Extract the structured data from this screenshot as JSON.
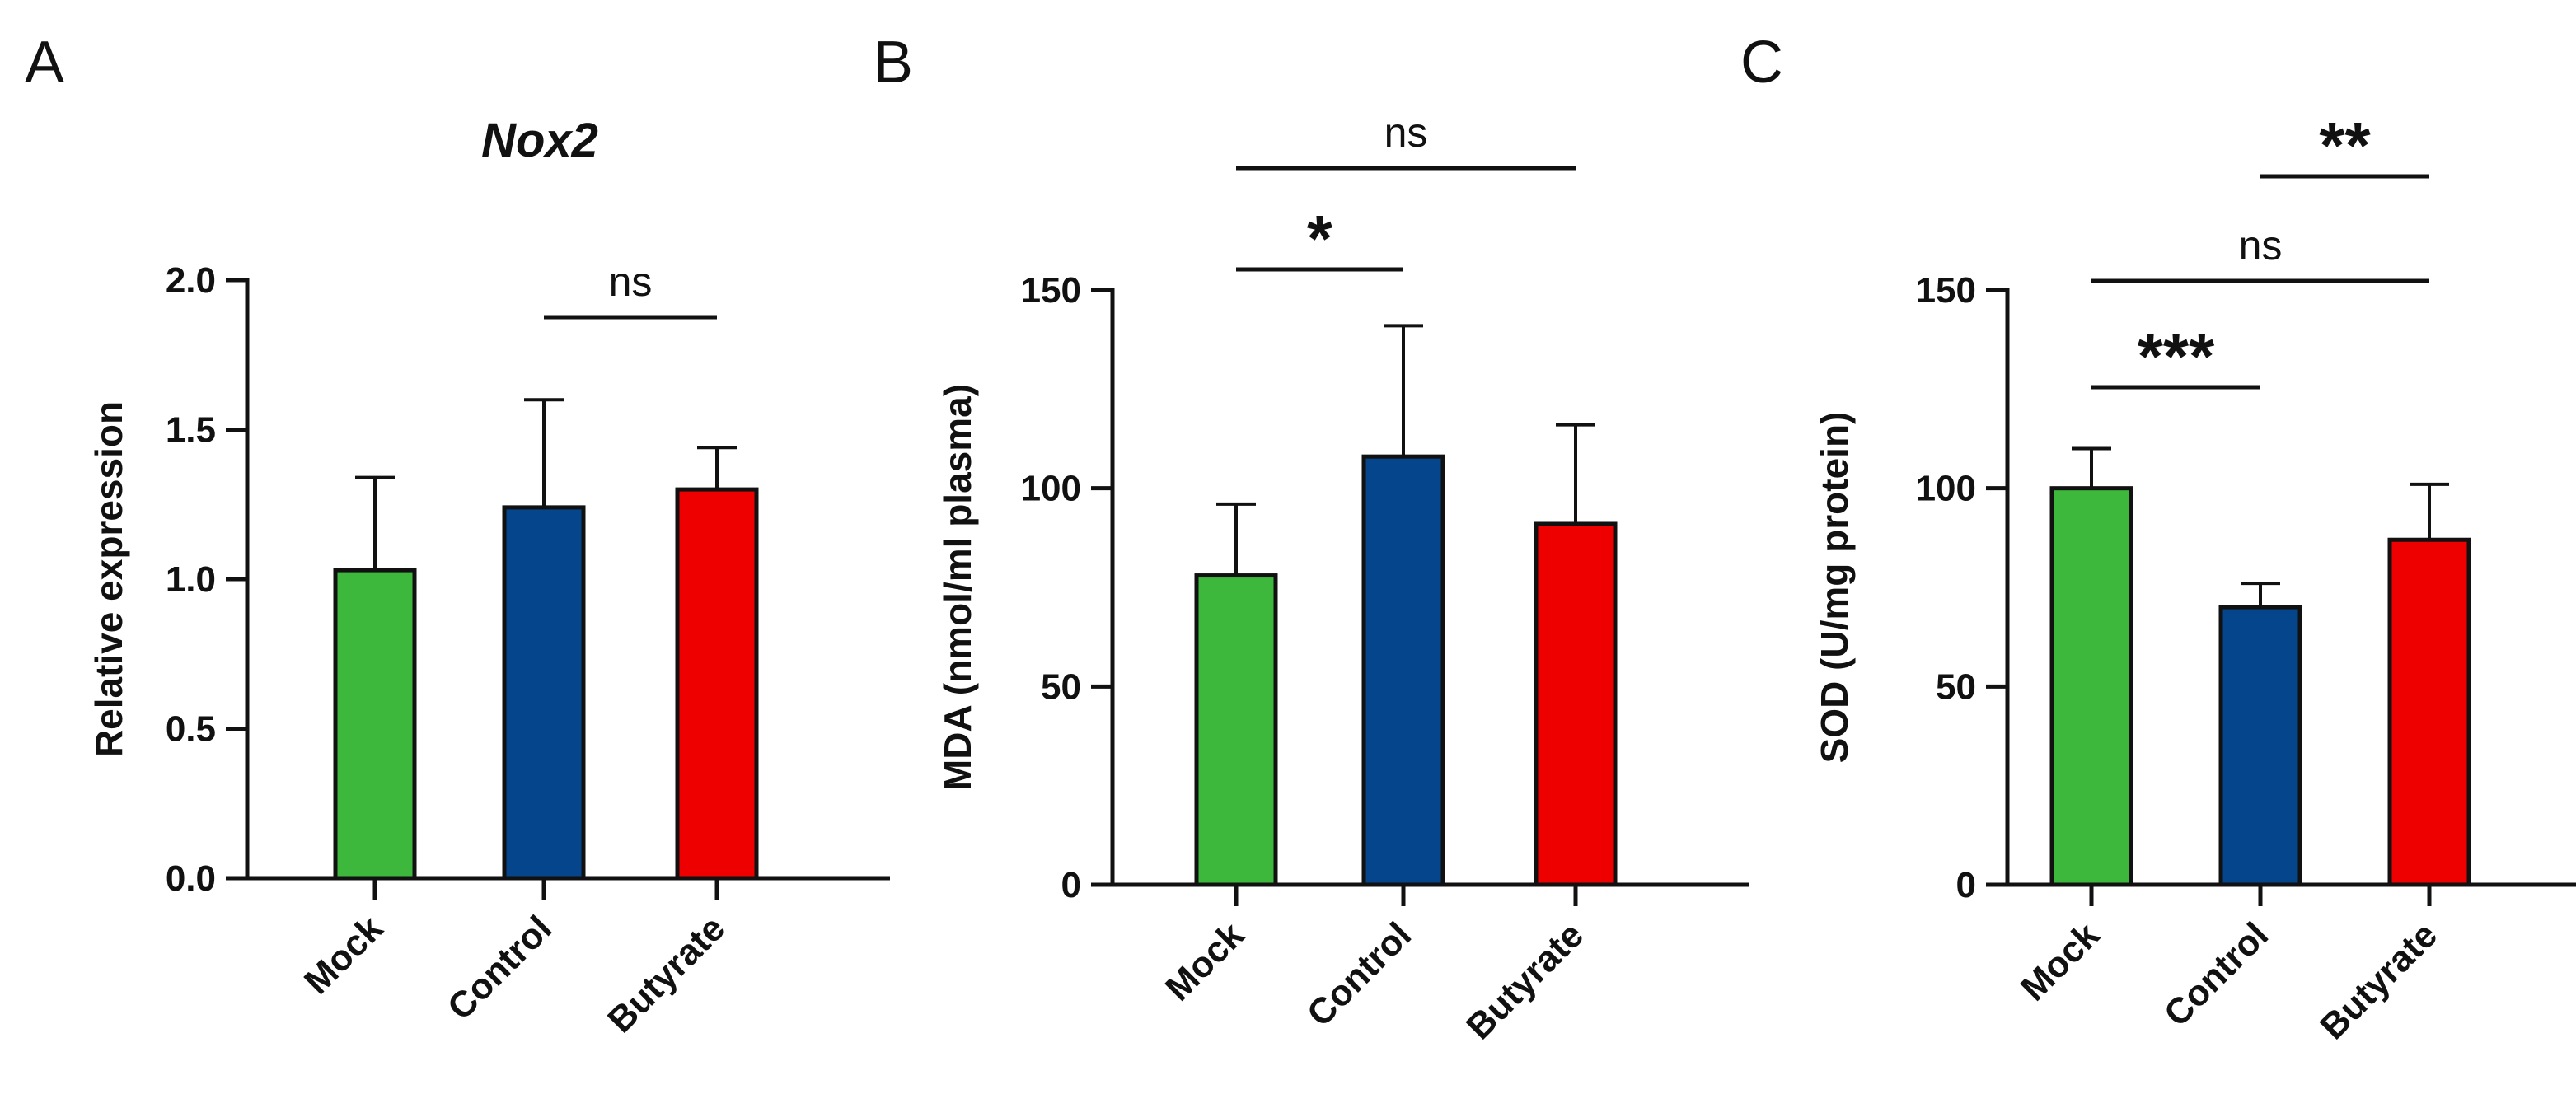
{
  "figure_title": "Nox2 expression, MDA and SOD by treatment group",
  "colors": {
    "Mock": "#3db83d",
    "Control": "#04458c",
    "Butyrate": "#ee0000",
    "axis": "#111111"
  },
  "chart_data": [
    {
      "panel": "A",
      "type": "bar",
      "title": "Nox2",
      "ylabel": "Relative expression",
      "xlabel": "",
      "categories": [
        "Mock",
        "Control",
        "Butyrate"
      ],
      "values": [
        1.03,
        1.24,
        1.3
      ],
      "error_upper": [
        0.31,
        0.36,
        0.14
      ],
      "ylim": [
        0,
        2.0
      ],
      "yticks": [
        0.0,
        0.5,
        1.0,
        1.5,
        2.0
      ],
      "ytick_labels": [
        "0.0",
        "0.5",
        "1.0",
        "1.5",
        "2.0"
      ],
      "significance": [
        {
          "from": 1,
          "to": 2,
          "label": "ns"
        }
      ]
    },
    {
      "panel": "B",
      "type": "bar",
      "title": "",
      "ylabel": "MDA (nmol/ml plasma)",
      "xlabel": "",
      "categories": [
        "Mock",
        "Control",
        "Butyrate"
      ],
      "values": [
        78,
        108,
        91
      ],
      "error_upper": [
        18,
        33,
        25
      ],
      "ylim": [
        0,
        150
      ],
      "yticks": [
        0,
        50,
        100,
        150
      ],
      "ytick_labels": [
        "0",
        "50",
        "100",
        "150"
      ],
      "significance": [
        {
          "from": 0,
          "to": 1,
          "label": "*"
        },
        {
          "from": 0,
          "to": 2,
          "label": "ns"
        }
      ]
    },
    {
      "panel": "C",
      "type": "bar",
      "title": "",
      "ylabel": "SOD (U/mg protein)",
      "xlabel": "",
      "categories": [
        "Mock",
        "Control",
        "Butyrate"
      ],
      "values": [
        100,
        70,
        87
      ],
      "error_upper": [
        10,
        6,
        14
      ],
      "ylim": [
        0,
        150
      ],
      "yticks": [
        0,
        50,
        100,
        150
      ],
      "ytick_labels": [
        "0",
        "50",
        "100",
        "150"
      ],
      "significance": [
        {
          "from": 0,
          "to": 1,
          "label": "***"
        },
        {
          "from": 0,
          "to": 2,
          "label": "ns"
        },
        {
          "from": 1,
          "to": 2,
          "label": "**"
        }
      ]
    }
  ]
}
